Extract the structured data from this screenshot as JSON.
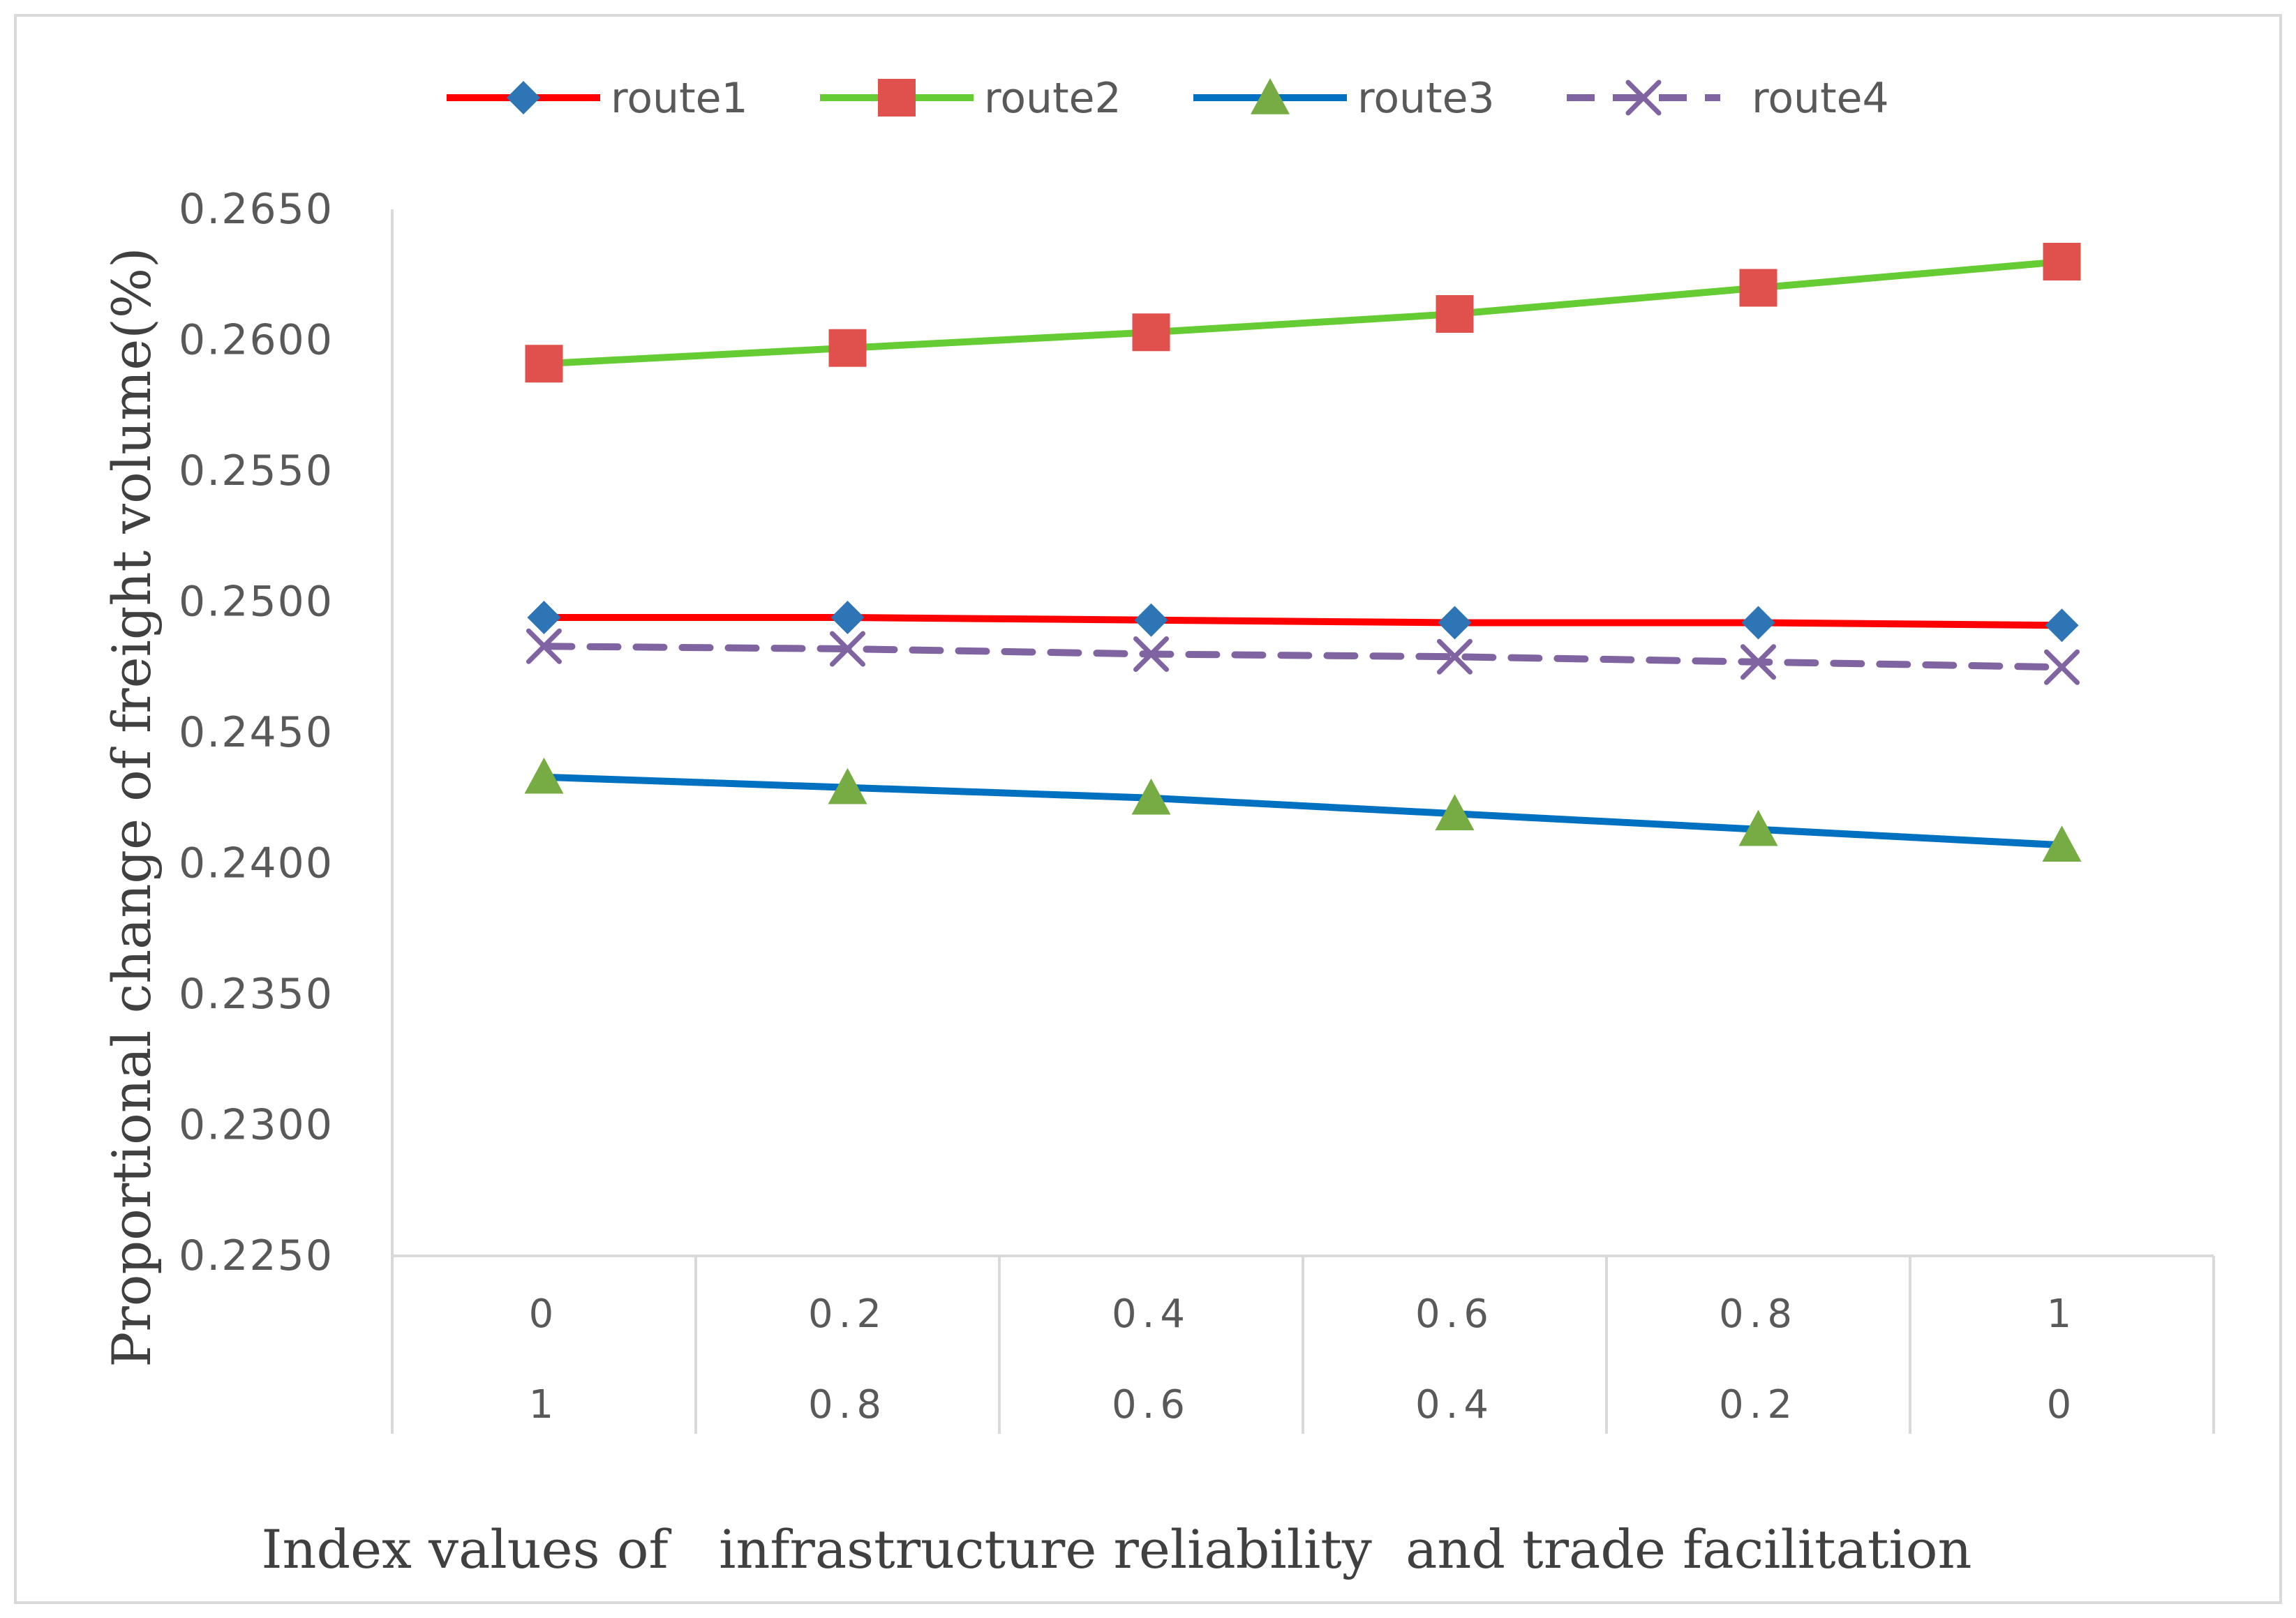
{
  "chart_data": {
    "type": "line",
    "title": "",
    "xlabel": "Index values of   infrastructure reliability  and trade facilitation",
    "ylabel": "Proportional change of freight  volume(%)",
    "ylim": [
      0.225,
      0.265
    ],
    "ytick_step": 0.005,
    "ytick_labels": [
      "0.2250",
      "0.2300",
      "0.2350",
      "0.2400",
      "0.2450",
      "0.2500",
      "0.2550",
      "0.2600",
      "0.2650"
    ],
    "categories_row1": [
      "0",
      "0.2",
      "0.4",
      "0.6",
      "0.8",
      "1"
    ],
    "categories_row2": [
      "1",
      "0.8",
      "0.6",
      "0.4",
      "0.2",
      "0"
    ],
    "grid": false,
    "legend_position": "top",
    "series": [
      {
        "name": "route1",
        "color": "#ff0000",
        "marker": "diamond",
        "marker_color": "#2e75b6",
        "dashed": false,
        "values": [
          0.2494,
          0.2494,
          0.2493,
          0.2492,
          0.2492,
          0.2491
        ]
      },
      {
        "name": "route2",
        "color": "#66cc33",
        "marker": "square",
        "marker_color": "#e0504d",
        "dashed": false,
        "values": [
          0.2591,
          0.2597,
          0.2603,
          0.261,
          0.262,
          0.263
        ]
      },
      {
        "name": "route3",
        "color": "#0070c0",
        "marker": "triangle",
        "marker_color": "#77ac44",
        "dashed": false,
        "values": [
          0.2433,
          0.2429,
          0.2425,
          0.2419,
          0.2413,
          0.2407
        ]
      },
      {
        "name": "route4",
        "color": "#8064a2",
        "marker": "x",
        "marker_color": "#8064a2",
        "dashed": true,
        "values": [
          0.2483,
          0.2482,
          0.248,
          0.2479,
          0.2477,
          0.2475
        ]
      }
    ]
  }
}
